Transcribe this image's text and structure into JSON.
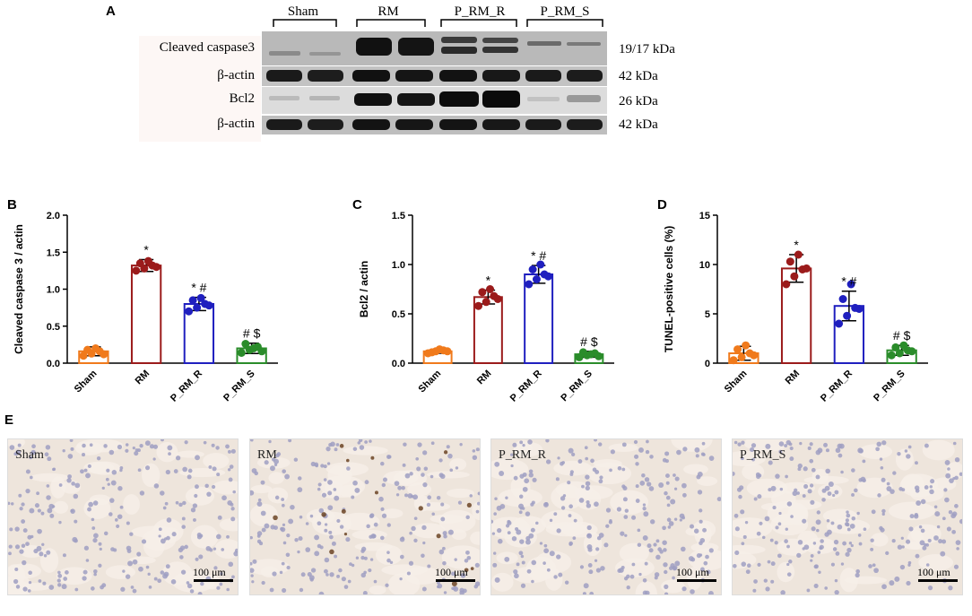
{
  "panels": {
    "A": "A",
    "B": "B",
    "C": "C",
    "D": "D",
    "E": "E"
  },
  "western_blot": {
    "groups": [
      "Sham",
      "RM",
      "P_RM_R",
      "P_RM_S"
    ],
    "rows": [
      {
        "label": "Cleaved caspase3",
        "kda": "19/17 kDa"
      },
      {
        "label": "β-actin",
        "kda": "42 kDa"
      },
      {
        "label": "Bcl2",
        "kda": "26 kDa"
      },
      {
        "label": "β-actin",
        "kda": "42 kDa"
      }
    ]
  },
  "chart_data": [
    {
      "type": "bar",
      "panel": "B",
      "ylabel": "Cleaved caspase 3 / actin",
      "ylim": [
        0,
        2.0
      ],
      "yticks": [
        "0.0",
        "0.5",
        "1.0",
        "1.5",
        "2.0"
      ],
      "categories": [
        "Sham",
        "RM",
        "P_RM_R",
        "P_RM_S"
      ],
      "values": [
        0.16,
        1.32,
        0.8,
        0.2
      ],
      "errors": [
        0.06,
        0.08,
        0.09,
        0.07
      ],
      "points": [
        [
          0.1,
          0.13,
          0.16,
          0.18,
          0.2,
          0.12
        ],
        [
          1.25,
          1.28,
          1.32,
          1.35,
          1.38,
          1.3
        ],
        [
          0.7,
          0.75,
          0.8,
          0.85,
          0.88,
          0.78
        ],
        [
          0.14,
          0.18,
          0.22,
          0.26,
          0.2,
          0.16
        ]
      ],
      "annotations": [
        "",
        "*",
        "* #",
        "# $"
      ],
      "colors": [
        "#f07a1c",
        "#9b1b1b",
        "#1f1fbf",
        "#2a8c2a"
      ]
    },
    {
      "type": "bar",
      "panel": "C",
      "ylabel": "Bcl2 / actin",
      "ylim": [
        0,
        1.5
      ],
      "yticks": [
        "0.0",
        "0.5",
        "1.0",
        "1.5"
      ],
      "categories": [
        "Sham",
        "RM",
        "P_RM_R",
        "P_RM_S"
      ],
      "values": [
        0.12,
        0.67,
        0.9,
        0.09
      ],
      "errors": [
        0.02,
        0.07,
        0.09,
        0.03
      ],
      "points": [
        [
          0.1,
          0.12,
          0.13,
          0.11,
          0.14,
          0.12
        ],
        [
          0.58,
          0.62,
          0.68,
          0.72,
          0.75,
          0.65
        ],
        [
          0.8,
          0.85,
          0.9,
          0.95,
          1.0,
          0.88
        ],
        [
          0.06,
          0.08,
          0.1,
          0.11,
          0.09,
          0.07
        ]
      ],
      "annotations": [
        "",
        "*",
        "* #",
        "# $"
      ],
      "colors": [
        "#f07a1c",
        "#9b1b1b",
        "#1f1fbf",
        "#2a8c2a"
      ]
    },
    {
      "type": "bar",
      "panel": "D",
      "ylabel": "TUNEL-positive cells (%)",
      "ylim": [
        0,
        15
      ],
      "yticks": [
        "0",
        "5",
        "10",
        "15"
      ],
      "categories": [
        "Sham",
        "RM",
        "P_RM_R",
        "P_RM_S"
      ],
      "values": [
        1.0,
        9.6,
        5.8,
        1.3
      ],
      "errors": [
        0.7,
        1.4,
        1.5,
        0.5
      ],
      "points": [
        [
          0.3,
          0.6,
          1.0,
          1.4,
          1.8,
          0.8
        ],
        [
          8.0,
          8.8,
          9.5,
          10.3,
          11.0,
          9.6
        ],
        [
          4.0,
          4.8,
          5.6,
          6.5,
          8.0,
          5.5
        ],
        [
          0.8,
          1.0,
          1.3,
          1.6,
          1.8,
          1.2
        ]
      ],
      "annotations": [
        "",
        "*",
        "* #",
        "# $"
      ],
      "colors": [
        "#f07a1c",
        "#9b1b1b",
        "#1f1fbf",
        "#2a8c2a"
      ]
    }
  ],
  "micrographs": [
    {
      "label": "Sham",
      "scale": "100 μm"
    },
    {
      "label": "RM",
      "scale": "100 μm"
    },
    {
      "label": "P_RM_R",
      "scale": "100 μm"
    },
    {
      "label": "P_RM_S",
      "scale": "100 μm"
    }
  ]
}
